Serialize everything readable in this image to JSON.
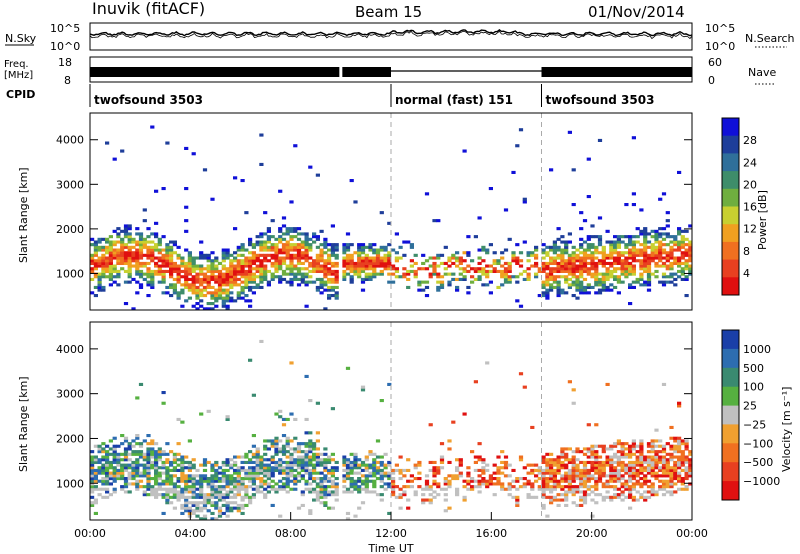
{
  "header": {
    "station": "Inuvik (fitACF)",
    "beam": "Beam 15",
    "date": "01/Nov/2014"
  },
  "summary": {
    "nsky_label": "N.Sky",
    "nsky_ticks": [
      "10^5",
      "10^0"
    ],
    "nsearch_label": "N.Search",
    "nsearch_ticks": [
      "10^5",
      "10^0"
    ],
    "freq_label": "Freq.",
    "freq_unit": "[MHz]",
    "freq_ticks": [
      "18",
      "8"
    ],
    "nave_label": "Nave",
    "nave_ticks": [
      "60",
      "0"
    ],
    "cpid_label": "CPID",
    "cpid_segments": [
      {
        "name": "twofsound 3503",
        "start_hour": 0,
        "end_hour": 12
      },
      {
        "name": "normal (fast) 151",
        "start_hour": 12,
        "end_hour": 18
      },
      {
        "name": "twofsound 3503",
        "start_hour": 18,
        "end_hour": 24
      }
    ],
    "data_gap_hours": [
      10.0
    ]
  },
  "chart_data": [
    {
      "type": "heatmap",
      "panel": "power",
      "ylabel": "Slant Range [km]",
      "ylim": [
        180,
        4600
      ],
      "xlim_hours": [
        0,
        24
      ],
      "yticks": [
        "4000",
        "3000",
        "2000",
        "1000"
      ],
      "colorbar_label": "Power [dB]",
      "colorbar_ticks": [
        "28",
        "24",
        "20",
        "16",
        "12",
        "8",
        "4"
      ],
      "colorbar_range": [
        0,
        30
      ],
      "colors": [
        "#1010d8",
        "#1e3e9a",
        "#2f6f9a",
        "#3e8d6a",
        "#6fae3f",
        "#c8d030",
        "#f0a020",
        "#f07020",
        "#e84020",
        "#e01010"
      ]
    },
    {
      "type": "heatmap",
      "panel": "velocity",
      "ylabel": "Slant Range [km]",
      "ylim": [
        180,
        4600
      ],
      "xlim_hours": [
        0,
        24
      ],
      "yticks": [
        "4000",
        "3000",
        "2000",
        "1000"
      ],
      "xticks": [
        "00:00",
        "04:00",
        "08:00",
        "12:00",
        "16:00",
        "20:00",
        "00:00"
      ],
      "xlabel": "Time UT",
      "colorbar_label": "Velocity [m s⁻¹]",
      "colorbar_ticks": [
        "1000",
        "500",
        "100",
        "25",
        "−25",
        "−100",
        "−500",
        "−1000"
      ],
      "colors": [
        "#1a3fa8",
        "#2d6db0",
        "#3a8a70",
        "#56b040",
        "#c0c0c0",
        "#f0a030",
        "#f07020",
        "#e84020",
        "#e01010"
      ]
    }
  ]
}
